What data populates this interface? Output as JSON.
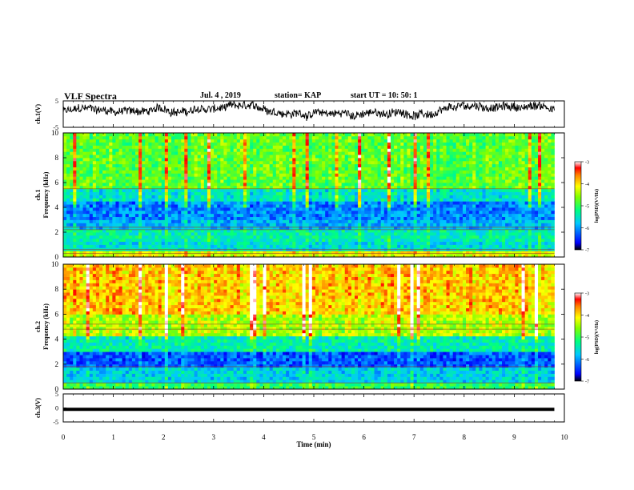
{
  "header": {
    "title": "VLF Spectra",
    "date": "Jul. 4 , 2019",
    "station": "station= KAP",
    "start": "start UT = 10: 50: 1"
  },
  "chart_data": [
    {
      "type": "line",
      "panel": "ch1-waveform",
      "ylabel": "ch.1(V)",
      "ylim": [
        -5,
        5
      ],
      "yticks": [
        "5",
        "-5"
      ],
      "xlim": [
        0,
        10
      ],
      "data_end_min": 9.8,
      "description_values": "noisy voltage trace, mean ≈ 1 V, range ≈ -3.5 to 5 V"
    },
    {
      "type": "heatmap",
      "panel": "ch1-spectrogram",
      "ylabel_top": "ch.1",
      "ylabel": "Frequency (kHz)",
      "ylim": [
        0,
        10
      ],
      "yticks": [
        "0",
        "2",
        "4",
        "6",
        "8",
        "10"
      ],
      "xlim": [
        0,
        10
      ],
      "data_end_min": 9.8,
      "freq_bands": [
        {
          "from": 0,
          "to": 0.4,
          "level": -4.2
        },
        {
          "from": 0.4,
          "to": 1.2,
          "level": -5.6
        },
        {
          "from": 1.2,
          "to": 2.2,
          "level": -5.4
        },
        {
          "from": 2.2,
          "to": 3.0,
          "level": -5.9
        },
        {
          "from": 3.0,
          "to": 4.6,
          "level": -6.1
        },
        {
          "from": 4.6,
          "to": 5.6,
          "level": -5.5
        },
        {
          "from": 5.6,
          "to": 10.0,
          "level": -4.8
        }
      ],
      "lines_khz": [
        0.3,
        0.6,
        2.2,
        2.4,
        5.5
      ],
      "colorbar": {
        "label": "log(PSD)(V²/Hz)",
        "min": -7,
        "max": -3,
        "ticks": [
          "-3",
          "-4",
          "-5",
          "-6",
          "-7"
        ]
      }
    },
    {
      "type": "heatmap",
      "panel": "ch2-spectrogram",
      "ylabel_top": "ch.2",
      "ylabel": "Frequency (kHz)",
      "ylim": [
        0,
        10
      ],
      "yticks": [
        "0",
        "2",
        "4",
        "6",
        "8",
        "10"
      ],
      "xlim": [
        0,
        10
      ],
      "data_end_min": 9.8,
      "freq_bands": [
        {
          "from": 0,
          "to": 0.4,
          "level": -5.0
        },
        {
          "from": 0.4,
          "to": 1.8,
          "level": -5.7
        },
        {
          "from": 1.8,
          "to": 3.0,
          "level": -6.3
        },
        {
          "from": 3.0,
          "to": 4.2,
          "level": -5.4
        },
        {
          "from": 4.2,
          "to": 6.0,
          "level": -4.4
        },
        {
          "from": 6.0,
          "to": 10.0,
          "level": -3.9
        }
      ],
      "lines_khz": [
        0.5,
        1.8,
        4.8,
        5.2
      ],
      "colorbar": {
        "label": "log(PSD)(V²/Hz)",
        "min": -7,
        "max": -3,
        "ticks": [
          "-3",
          "-4",
          "-5",
          "-6",
          "-7"
        ]
      }
    },
    {
      "type": "line",
      "panel": "ch3-waveform",
      "ylabel": "ch.3(V)",
      "ylim": [
        -5,
        5
      ],
      "yticks": [
        "5",
        "0",
        "-5"
      ],
      "xlim": [
        0,
        10
      ],
      "data_end_min": 9.8,
      "constant_value": -0.5,
      "xlabel": "Time (min)",
      "xticks": [
        "0",
        "1",
        "2",
        "3",
        "4",
        "5",
        "6",
        "7",
        "8",
        "9",
        "10"
      ]
    }
  ]
}
